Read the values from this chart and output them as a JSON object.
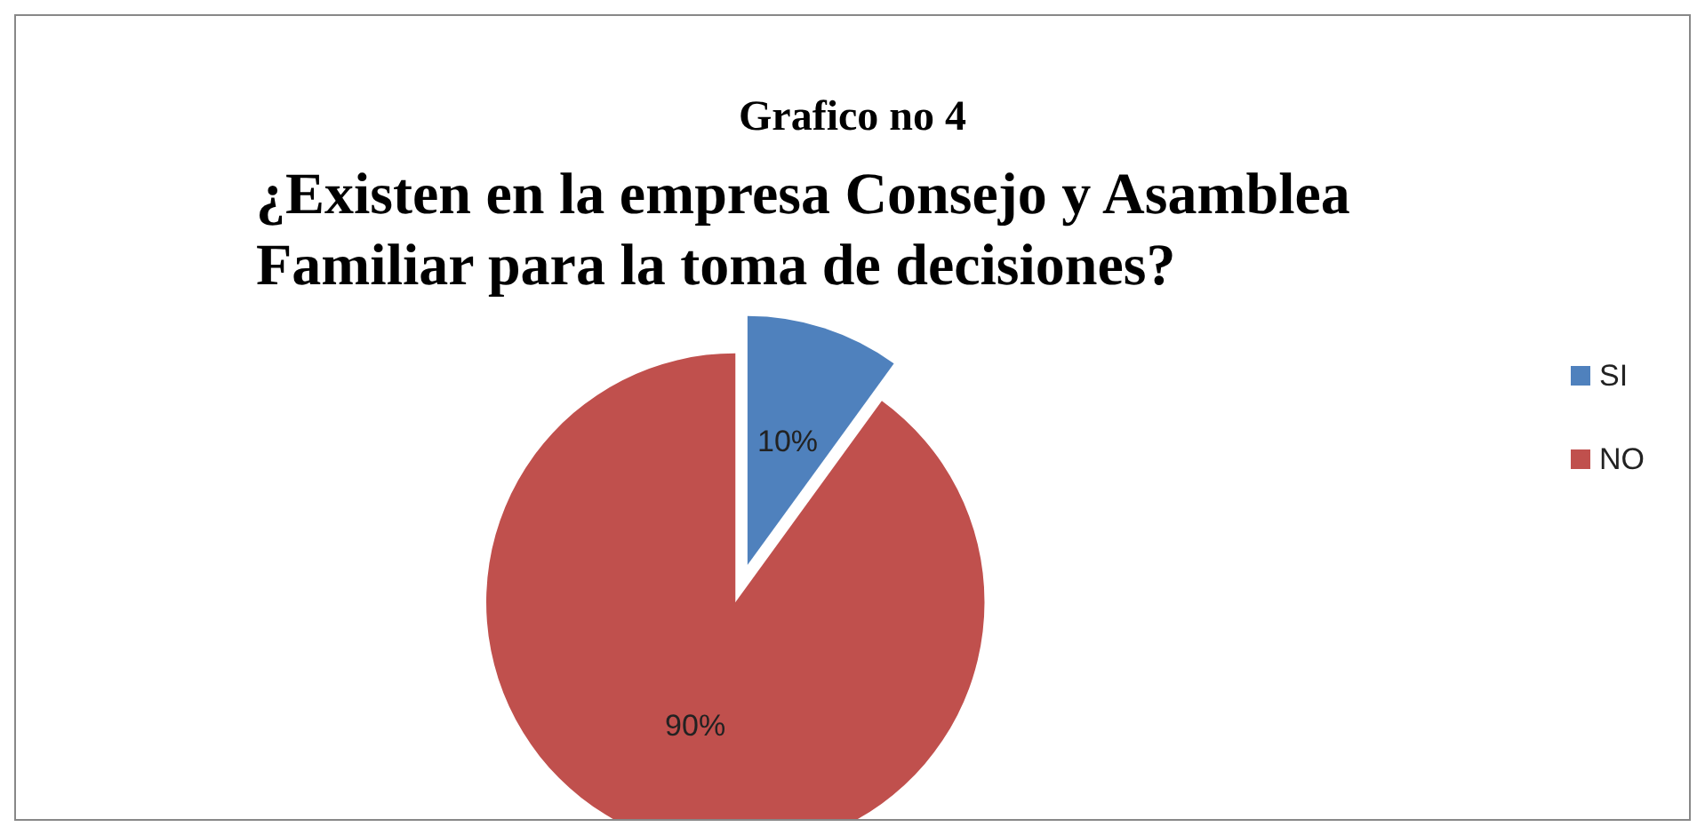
{
  "chart_data": {
    "type": "pie",
    "title": "Grafico no 4",
    "subtitle": "¿Existen en la empresa Consejo y Asamblea Familiar para la toma de decisiones?",
    "categories": [
      "SI",
      "NO"
    ],
    "values": [
      10,
      90
    ],
    "colors": [
      "#4f81bd",
      "#c0504d"
    ],
    "value_labels": [
      "10%",
      "90%"
    ],
    "legend": "right"
  }
}
